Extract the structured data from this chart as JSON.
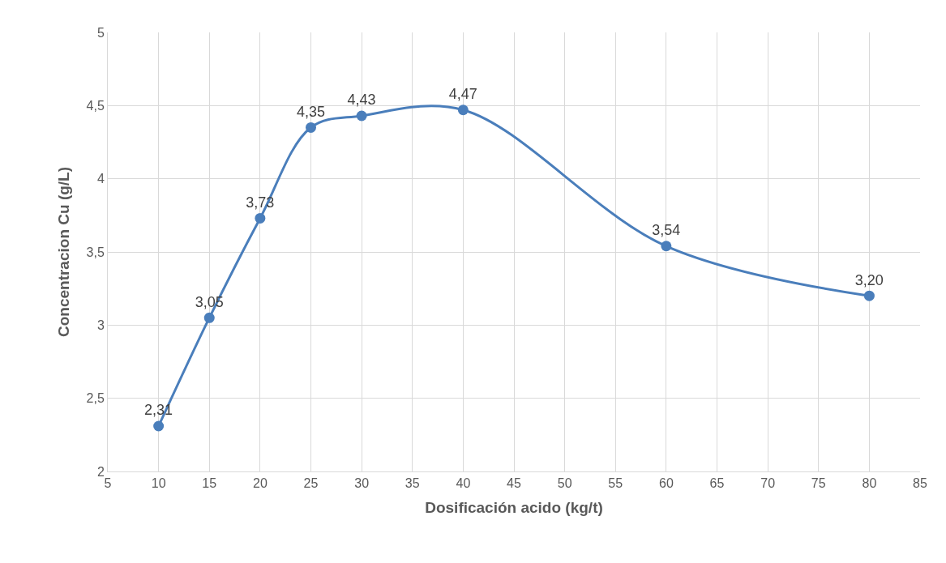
{
  "chart_data": {
    "type": "line",
    "xlabel": "Dosificación acido (kg/t)",
    "ylabel": "Concentracion Cu (g/L)",
    "x": [
      10,
      15,
      20,
      25,
      30,
      40,
      60,
      80
    ],
    "series": [
      {
        "color": "#4a7ebb",
        "values": [
          2.31,
          3.05,
          3.73,
          4.35,
          4.43,
          4.47,
          3.54,
          3.2
        ],
        "value_labels": [
          "2,31",
          "3,05",
          "3,73",
          "4,35",
          "4,43",
          "4,47",
          "3,54",
          "3,20"
        ]
      }
    ],
    "xlim": [
      5,
      85
    ],
    "xticks": [
      5,
      10,
      15,
      20,
      25,
      30,
      35,
      40,
      45,
      50,
      55,
      60,
      65,
      70,
      75,
      80,
      85
    ],
    "ylim": [
      2,
      5
    ],
    "yticks": [
      2,
      {
        "value": 2.5,
        "label": "2,5"
      },
      3,
      {
        "value": 3.5,
        "label": "3,5"
      },
      4,
      {
        "value": 4.5,
        "label": "4,5"
      },
      5
    ],
    "grid": true,
    "marker": "circle",
    "line_style": "solid",
    "legend": false
  }
}
